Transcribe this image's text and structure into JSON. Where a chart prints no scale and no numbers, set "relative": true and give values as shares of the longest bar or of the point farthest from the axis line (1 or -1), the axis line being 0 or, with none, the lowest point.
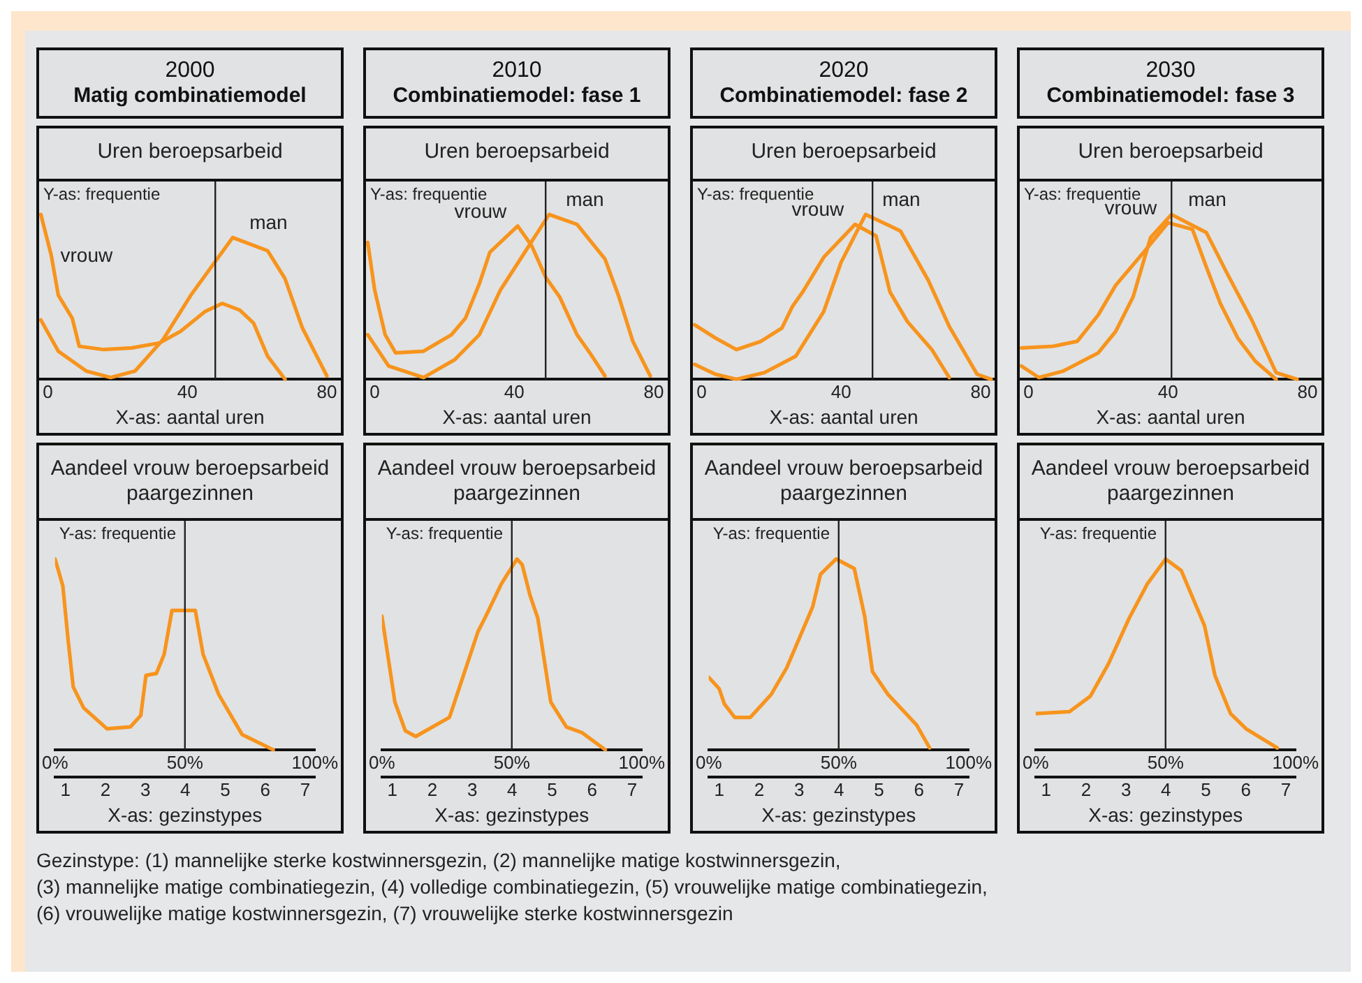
{
  "chart_data": [
    {
      "type": "other",
      "title": "2000",
      "subtitle": "Matig combinatiemodel"
    },
    {
      "type": "other",
      "title": "2010",
      "subtitle": "Combinatiemodel: fase 1"
    },
    {
      "type": "other",
      "title": "2020",
      "subtitle": "Combinatiemodel: fase 2"
    },
    {
      "type": "other",
      "title": "2030",
      "subtitle": "Combinatiemodel: fase 3"
    },
    {
      "type": "line",
      "title": "Uren beroepsarbeid",
      "xlabel": "X-as: aantal uren",
      "annotations": [
        "Y-as: frequentie"
      ],
      "relative": true,
      "tick_labels": "x",
      "xlim": [
        -2.5,
        84
      ],
      "xticks": [
        0,
        40,
        80
      ],
      "ref_lines": [
        {
          "axis": "x",
          "value": 48
        }
      ],
      "series": [
        {
          "name": "vrouw",
          "color": "#f7941d",
          "x": [
            -2,
            1,
            3,
            7,
            9,
            16,
            24,
            32,
            38,
            45,
            50,
            55,
            59,
            63,
            68
          ],
          "values": [
            1,
            0.75,
            0.51,
            0.37,
            0.2,
            0.18,
            0.19,
            0.22,
            0.29,
            0.41,
            0.46,
            0.42,
            0.34,
            0.14,
            0
          ]
        },
        {
          "name": "man",
          "color": "#f7941d",
          "x": [
            -2,
            3,
            11,
            18,
            25,
            33,
            41,
            53,
            63,
            68,
            73,
            80
          ],
          "values": [
            0.36,
            0.17,
            0.05,
            0.01,
            0.05,
            0.24,
            0.51,
            0.86,
            0.78,
            0.61,
            0.31,
            0.02
          ]
        }
      ]
    },
    {
      "type": "line",
      "title": "Uren beroepsarbeid",
      "xlabel": "X-as: aantal uren",
      "annotations": [
        "Y-as: frequentie"
      ],
      "relative": true,
      "tick_labels": "x",
      "xlim": [
        -2.5,
        84
      ],
      "xticks": [
        0,
        40,
        80
      ],
      "ref_lines": [
        {
          "axis": "x",
          "value": 49
        }
      ],
      "series": [
        {
          "name": "vrouw",
          "color": "#f7941d",
          "x": [
            -2,
            0,
            3,
            6,
            14,
            22,
            26,
            30,
            33,
            41,
            45,
            49,
            53,
            58,
            62,
            66
          ],
          "values": [
            0.83,
            0.54,
            0.27,
            0.16,
            0.17,
            0.27,
            0.37,
            0.58,
            0.77,
            0.93,
            0.81,
            0.62,
            0.5,
            0.27,
            0.15,
            0.02
          ]
        },
        {
          "name": "man",
          "color": "#f7941d",
          "x": [
            -2,
            4,
            14,
            23,
            30,
            36,
            43,
            50,
            58,
            66,
            70,
            74,
            79
          ],
          "values": [
            0.27,
            0.08,
            0.01,
            0.12,
            0.27,
            0.54,
            0.77,
            1,
            0.94,
            0.73,
            0.5,
            0.23,
            0.02
          ]
        }
      ]
    },
    {
      "type": "line",
      "title": "Uren beroepsarbeid",
      "xlabel": "X-as: aantal uren",
      "annotations": [
        "Y-as: frequentie"
      ],
      "relative": true,
      "tick_labels": "x",
      "xlim": [
        -2.5,
        84
      ],
      "xticks": [
        0,
        40,
        80
      ],
      "ref_lines": [
        {
          "axis": "x",
          "value": 49
        }
      ],
      "series": [
        {
          "name": "vrouw",
          "color": "#f7941d",
          "x": [
            -2,
            4,
            10,
            17,
            23,
            26,
            29,
            35,
            44,
            50,
            54,
            59,
            66,
            71
          ],
          "values": [
            0.33,
            0.25,
            0.18,
            0.23,
            0.31,
            0.44,
            0.53,
            0.74,
            0.94,
            0.87,
            0.53,
            0.35,
            0.18,
            0.01
          ]
        },
        {
          "name": "man",
          "color": "#f7941d",
          "x": [
            -2,
            4,
            10,
            18,
            27,
            35,
            40,
            47,
            57,
            65,
            71,
            79,
            83
          ],
          "values": [
            0.09,
            0.03,
            0,
            0.04,
            0.14,
            0.41,
            0.71,
            1,
            0.9,
            0.6,
            0.32,
            0.03,
            0
          ]
        }
      ]
    },
    {
      "type": "line",
      "title": "Uren beroepsarbeid",
      "xlabel": "X-as: aantal uren",
      "annotations": [
        "Y-as: frequentie"
      ],
      "relative": true,
      "tick_labels": "x",
      "xlim": [
        -2.5,
        84
      ],
      "xticks": [
        0,
        40,
        80
      ],
      "ref_lines": [
        {
          "axis": "x",
          "value": 41
        }
      ],
      "series": [
        {
          "name": "vrouw",
          "color": "#f7941d",
          "x": [
            -2,
            7,
            14,
            20,
            25,
            33,
            40,
            47,
            51,
            55,
            60,
            65,
            71
          ],
          "values": [
            0.19,
            0.2,
            0.23,
            0.39,
            0.57,
            0.77,
            0.95,
            0.91,
            0.68,
            0.46,
            0.25,
            0.11,
            0
          ]
        },
        {
          "name": "man",
          "color": "#f7941d",
          "x": [
            -2,
            3,
            10,
            20,
            25,
            30,
            35,
            41,
            51,
            57,
            64,
            71,
            77
          ],
          "values": [
            0.08,
            0.01,
            0.05,
            0.16,
            0.29,
            0.5,
            0.86,
            1,
            0.89,
            0.64,
            0.36,
            0.04,
            0
          ]
        }
      ]
    },
    {
      "type": "line",
      "title": "Aandeel vrouw beroepsarbeid paargezinnen",
      "x2label": "X-as: gezinstypes",
      "annotations": [
        "Y-as: frequentie"
      ],
      "relative": true,
      "tick_labels": "x",
      "xlim": [
        0,
        100
      ],
      "xticks": [
        {
          "value": 0,
          "label": "0%"
        },
        {
          "value": 50,
          "label": "50%"
        },
        {
          "value": 100,
          "label": "100%"
        }
      ],
      "x2lim": [
        0.74,
        7.24
      ],
      "x2ticks": [
        1,
        2,
        3,
        4,
        5,
        6,
        7
      ],
      "ref_lines": [
        {
          "axis": "x",
          "value": 50
        }
      ],
      "series": [
        {
          "color": "#f7941d",
          "x": [
            0,
            3,
            5,
            7,
            11,
            20,
            29,
            33,
            35,
            39,
            42,
            45,
            54,
            57,
            63,
            72,
            84
          ],
          "values": [
            1,
            0.86,
            0.58,
            0.33,
            0.22,
            0.11,
            0.12,
            0.18,
            0.39,
            0.4,
            0.5,
            0.73,
            0.73,
            0.5,
            0.29,
            0.08,
            0
          ]
        }
      ]
    },
    {
      "type": "line",
      "title": "Aandeel vrouw beroepsarbeid paargezinnen",
      "x2label": "X-as: gezinstypes",
      "annotations": [
        "Y-as: frequentie"
      ],
      "relative": true,
      "tick_labels": "x",
      "xlim": [
        0,
        100
      ],
      "xticks": [
        {
          "value": 0,
          "label": "0%"
        },
        {
          "value": 50,
          "label": "50%"
        },
        {
          "value": 100,
          "label": "100%"
        }
      ],
      "x2lim": [
        0.74,
        7.24
      ],
      "x2ticks": [
        1,
        2,
        3,
        4,
        5,
        6,
        7
      ],
      "ref_lines": [
        {
          "axis": "x",
          "value": 50
        }
      ],
      "series": [
        {
          "color": "#f7941d",
          "x": [
            0,
            5,
            9,
            13,
            26,
            37,
            40,
            46,
            52,
            54,
            57,
            60,
            65,
            71,
            77,
            86
          ],
          "values": [
            0.7,
            0.25,
            0.1,
            0.07,
            0.17,
            0.62,
            0.7,
            0.87,
            1,
            0.97,
            0.81,
            0.69,
            0.25,
            0.12,
            0.09,
            0
          ]
        }
      ]
    },
    {
      "type": "line",
      "title": "Aandeel vrouw beroepsarbeid paargezinnen",
      "x2label": "X-as: gezinstypes",
      "annotations": [
        "Y-as: frequentie"
      ],
      "relative": true,
      "tick_labels": "x",
      "xlim": [
        0,
        100
      ],
      "xticks": [
        {
          "value": 0,
          "label": "0%"
        },
        {
          "value": 50,
          "label": "50%"
        },
        {
          "value": 100,
          "label": "100%"
        }
      ],
      "x2lim": [
        0.74,
        7.24
      ],
      "x2ticks": [
        1,
        2,
        3,
        4,
        5,
        6,
        7
      ],
      "ref_lines": [
        {
          "axis": "x",
          "value": 50
        }
      ],
      "series": [
        {
          "color": "#f7941d",
          "x": [
            0,
            4,
            6,
            10,
            16,
            24,
            30,
            40,
            43,
            49,
            56,
            60,
            63,
            69,
            80,
            85
          ],
          "values": [
            0.38,
            0.32,
            0.24,
            0.17,
            0.17,
            0.29,
            0.43,
            0.75,
            0.92,
            1,
            0.95,
            0.7,
            0.41,
            0.29,
            0.13,
            0.01
          ]
        }
      ]
    },
    {
      "type": "line",
      "title": "Aandeel vrouw beroepsarbeid paargezinnen",
      "x2label": "X-as: gezinstypes",
      "annotations": [
        "Y-as: frequentie"
      ],
      "relative": true,
      "tick_labels": "x",
      "xlim": [
        0,
        100
      ],
      "xticks": [
        {
          "value": 0,
          "label": "0%"
        },
        {
          "value": 50,
          "label": "50%"
        },
        {
          "value": 100,
          "label": "100%"
        }
      ],
      "x2lim": [
        0.74,
        7.24
      ],
      "x2ticks": [
        1,
        2,
        3,
        4,
        5,
        6,
        7
      ],
      "ref_lines": [
        {
          "axis": "x",
          "value": 50
        }
      ],
      "series": [
        {
          "color": "#f7941d",
          "x": [
            0,
            13,
            21,
            28,
            36,
            43,
            50,
            56,
            65,
            69,
            75,
            81,
            93
          ],
          "values": [
            0.19,
            0.2,
            0.28,
            0.45,
            0.69,
            0.87,
            1,
            0.94,
            0.65,
            0.39,
            0.19,
            0.11,
            0.01
          ]
        }
      ]
    },
    {
      "type": "other",
      "annotations": [
        "Gezinstype: (1) mannelijke sterke kostwinnersgezin, (2) mannelijke matige kostwinnersgezin,",
        "(3) mannelijke matige combinatiegezin, (4) volledige combinatiegezin, (5) vrouwelijke matige combinatiegezin,",
        "(6) vrouwelijke matige kostwinnersgezin, (7) vrouwelijke sterke kostwinnersgezin"
      ]
    }
  ]
}
